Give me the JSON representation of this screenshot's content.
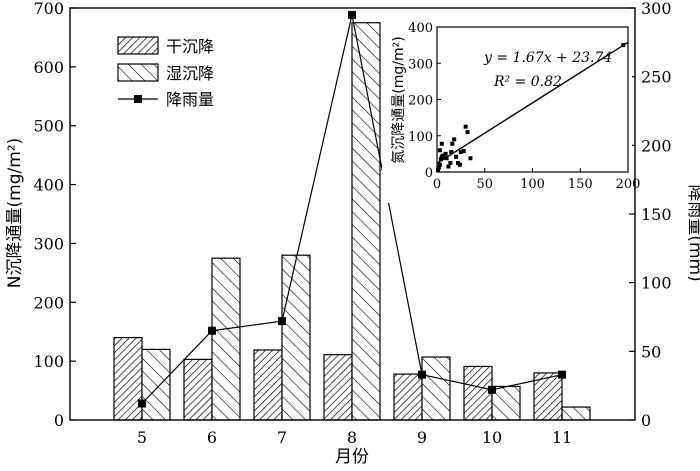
{
  "chart_data": [
    {
      "type": "bar+line",
      "categories": [
        "5",
        "6",
        "7",
        "8",
        "9",
        "10",
        "11"
      ],
      "series": [
        {
          "name": "干沉降",
          "type": "bar",
          "axis": "left",
          "values": [
            140,
            103,
            119,
            111,
            78,
            91,
            80
          ]
        },
        {
          "name": "湿沉降",
          "type": "bar",
          "axis": "left",
          "values": [
            120,
            275,
            280,
            675,
            107,
            57,
            22
          ]
        },
        {
          "name": "降雨量",
          "type": "line",
          "axis": "right",
          "values": [
            12,
            65,
            72,
            295,
            33,
            22,
            33
          ]
        }
      ],
      "xlabel": "月份",
      "ylabel": "N沉降通量(mg/m²)",
      "y2label": "降雨量(mm)",
      "ylim": [
        0,
        700
      ],
      "y2lim": [
        0,
        300
      ],
      "yticks": [
        "0",
        "100",
        "200",
        "300",
        "400",
        "500",
        "600",
        "700"
      ],
      "y2ticks": [
        "0",
        "50",
        "100",
        "150",
        "200",
        "250",
        "300"
      ],
      "legend": "top-left",
      "grid": false,
      "colors": {
        "line": "#000000",
        "bar_edge": "#000000",
        "fill": "#ffffff"
      }
    },
    {
      "type": "scatter",
      "ylabel": "氮沉降通量(mg/m²)",
      "xlim": [
        0,
        200
      ],
      "ylim": [
        0,
        400
      ],
      "xticks": [
        "0",
        "50",
        "100",
        "150",
        "200"
      ],
      "yticks": [
        "0",
        "100",
        "200",
        "300",
        "400"
      ],
      "equation": "y = 1.67x + 23.74",
      "r2": "R² = 0.82",
      "fit": {
        "slope": 1.67,
        "intercept": 23.74
      },
      "points": [
        [
          1,
          5
        ],
        [
          2,
          12
        ],
        [
          3,
          20
        ],
        [
          4,
          35
        ],
        [
          5,
          42
        ],
        [
          6,
          45
        ],
        [
          3,
          60
        ],
        [
          5,
          78
        ],
        [
          9,
          50
        ],
        [
          10,
          38
        ],
        [
          12,
          15
        ],
        [
          14,
          25
        ],
        [
          15,
          55
        ],
        [
          16,
          78
        ],
        [
          18,
          90
        ],
        [
          20,
          42
        ],
        [
          22,
          25
        ],
        [
          24,
          20
        ],
        [
          25,
          55
        ],
        [
          28,
          58
        ],
        [
          30,
          125
        ],
        [
          32,
          110
        ],
        [
          35,
          38
        ],
        [
          195,
          350
        ]
      ]
    }
  ]
}
